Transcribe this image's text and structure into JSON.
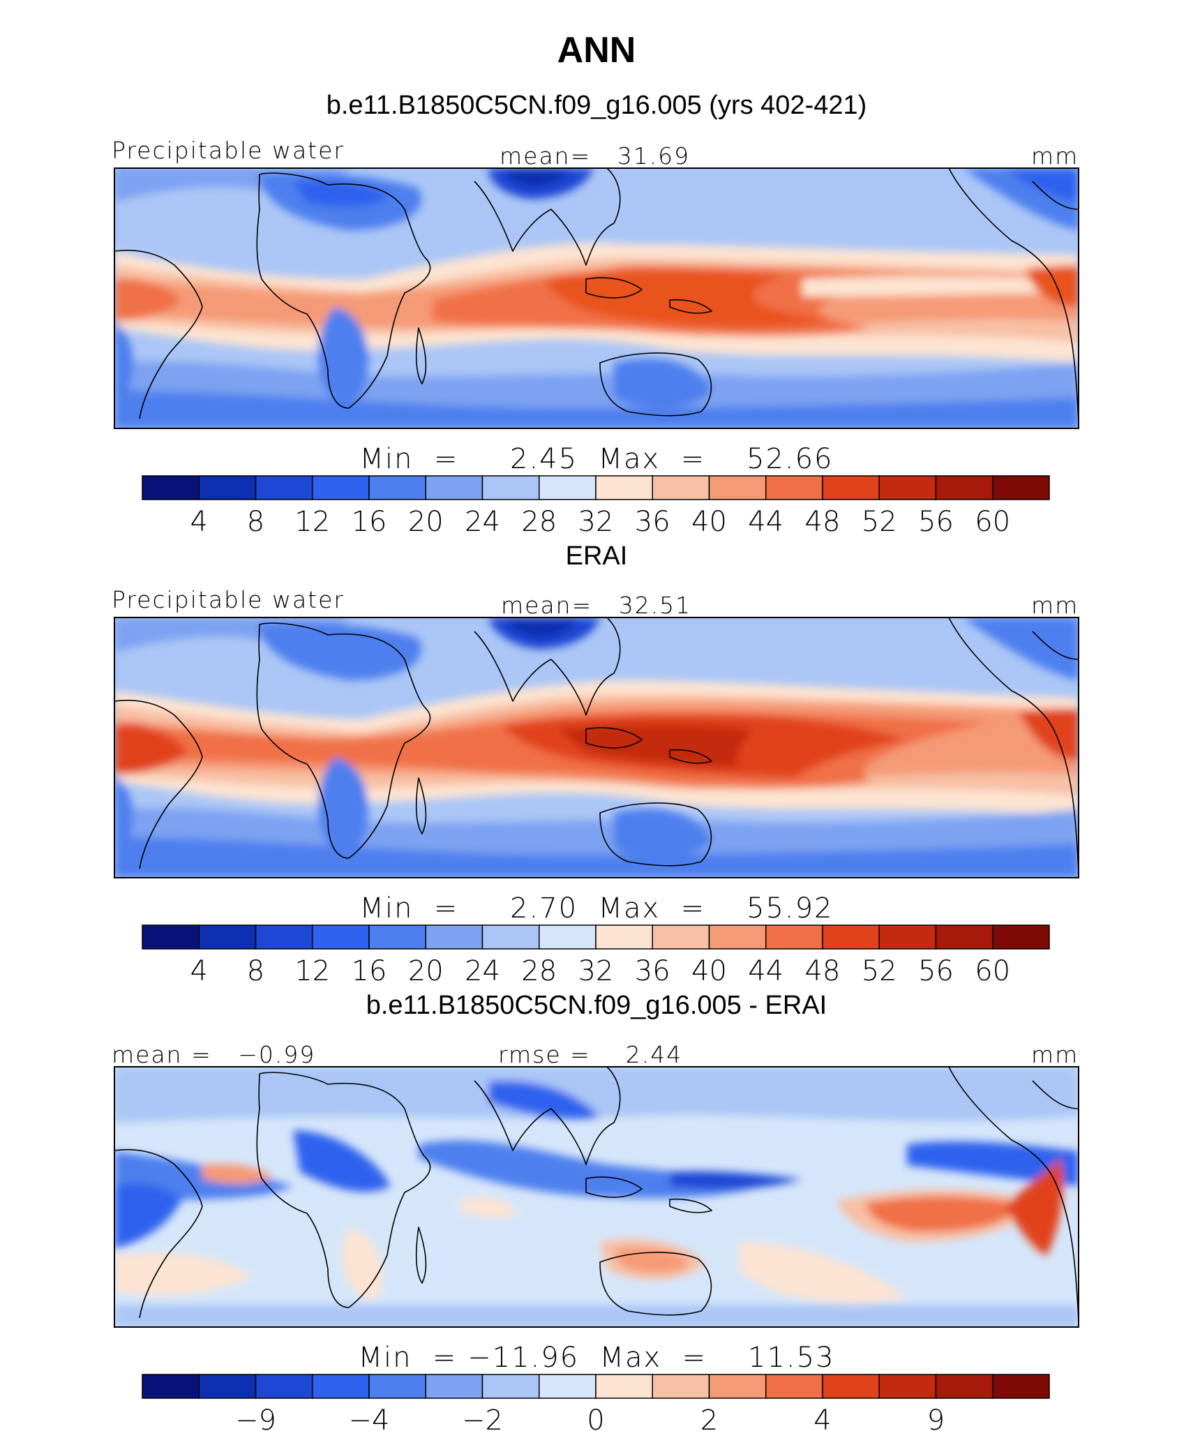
{
  "figure": {
    "title": "ANN"
  },
  "panels": [
    {
      "title": "b.e11.B1850C5CN.f09_g16.005 (yrs 402-421)",
      "left_label": "Precipitable water",
      "center_label": "mean=   31.69",
      "units": "mm",
      "minmax": "Min  =     2.45  Max  =    52.66"
    },
    {
      "title": "ERAI",
      "left_label": "Precipitable water",
      "center_label": "mean=   32.51",
      "units": "mm",
      "minmax": "Min  =     2.70  Max  =    55.92"
    },
    {
      "title": "b.e11.B1850C5CN.f09_g16.005 - ERAI",
      "left_label": "mean =   −0.99",
      "center_label": "rmse =    2.44",
      "units": "mm",
      "minmax": "Min  = −11.96  Max  =    11.53"
    }
  ],
  "chart_data": [
    {
      "type": "heatmap",
      "title": "b.e11.B1850C5CN.f09_g16.005 (yrs 402-421)",
      "variable": "Precipitable water",
      "units": "mm",
      "mean": 31.69,
      "min": 2.45,
      "max": 52.66,
      "colorbar_levels": [
        4,
        8,
        12,
        16,
        20,
        24,
        28,
        32,
        36,
        40,
        44,
        48,
        52,
        56,
        60
      ],
      "colorbar_colors": [
        "#08127a",
        "#0a2fb0",
        "#1e47d6",
        "#2f62ee",
        "#4d7fee",
        "#7da2f2",
        "#abc6f6",
        "#d6e6fa",
        "#fde4d2",
        "#f8c0a4",
        "#f59a76",
        "#f06f46",
        "#e1421c",
        "#c42a10",
        "#a51a0a",
        "#7d0a05"
      ]
    },
    {
      "type": "heatmap",
      "title": "ERAI",
      "variable": "Precipitable water",
      "units": "mm",
      "mean": 32.51,
      "min": 2.7,
      "max": 55.92,
      "colorbar_levels": [
        4,
        8,
        12,
        16,
        20,
        24,
        28,
        32,
        36,
        40,
        44,
        48,
        52,
        56,
        60
      ],
      "colorbar_colors": [
        "#08127a",
        "#0a2fb0",
        "#1e47d6",
        "#2f62ee",
        "#4d7fee",
        "#7da2f2",
        "#abc6f6",
        "#d6e6fa",
        "#fde4d2",
        "#f8c0a4",
        "#f59a76",
        "#f06f46",
        "#e1421c",
        "#c42a10",
        "#a51a0a",
        "#7d0a05"
      ]
    },
    {
      "type": "heatmap",
      "title": "b.e11.B1850C5CN.f09_g16.005 - ERAI",
      "units": "mm",
      "mean": -0.99,
      "rmse": 2.44,
      "min": -11.96,
      "max": 11.53,
      "colorbar_levels": [
        -12,
        -9,
        -6,
        -4,
        -3,
        -2,
        -1,
        0,
        1,
        2,
        3,
        4,
        6,
        9,
        12
      ],
      "colorbar_tick_labels": [
        "−9",
        "−4",
        "−2",
        "0",
        "2",
        "4",
        "9"
      ],
      "colorbar_colors": [
        "#08127a",
        "#0a2fb0",
        "#1e47d6",
        "#2f62ee",
        "#4d7fee",
        "#7da2f2",
        "#abc6f6",
        "#d6e6fa",
        "#fde4d2",
        "#f8c0a4",
        "#f59a76",
        "#f06f46",
        "#e1421c",
        "#c42a10",
        "#a51a0a",
        "#7d0a05"
      ]
    }
  ]
}
